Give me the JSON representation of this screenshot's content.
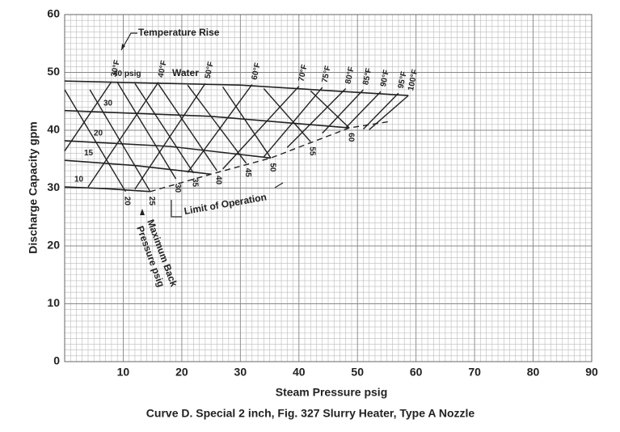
{
  "chart_data": {
    "type": "line",
    "title": "Curve D.  Special 2 inch, Fig. 327 Slurry Heater, Type A Nozzle",
    "x_label": "Steam Pressure psig",
    "y_label": "Discharge Capacity gpm",
    "xlim": [
      0,
      90
    ],
    "ylim": [
      0,
      60
    ],
    "xticks": [
      10,
      20,
      30,
      40,
      50,
      60,
      70,
      80,
      90
    ],
    "yticks": [
      0,
      10,
      20,
      30,
      40,
      50,
      60
    ],
    "grid": true,
    "color": "#222222",
    "annotations": {
      "temperature": "Temperature Rise",
      "water": "Water",
      "limit": "Limit of Operation",
      "back_pressure_1": "Maximum Back",
      "back_pressure_2": "Pressure psig"
    },
    "pressure_curves": [
      {
        "name": "10",
        "x": [
          0,
          7,
          14.6
        ],
        "values": [
          30.2,
          29.9,
          29.4
        ]
      },
      {
        "name": "15",
        "x": [
          0,
          12,
          25
        ],
        "values": [
          34.8,
          33.9,
          32.4
        ]
      },
      {
        "name": "20",
        "x": [
          0,
          18,
          35.2
        ],
        "values": [
          38.2,
          37.2,
          35.2
        ]
      },
      {
        "name": "30",
        "x": [
          0,
          25,
          48.6
        ],
        "values": [
          43.4,
          42.4,
          40.4
        ]
      },
      {
        "name": "40 psig",
        "x": [
          0,
          30,
          58.7
        ],
        "values": [
          48.5,
          47.8,
          46.0
        ]
      }
    ],
    "temperature_lines": [
      {
        "name": "30°F",
        "x": [
          8,
          0
        ],
        "values": [
          48.4,
          36.4
        ]
      },
      {
        "name": "40°F",
        "x": [
          16,
          4
        ],
        "values": [
          48.3,
          30.2
        ]
      },
      {
        "name": "50°F",
        "x": [
          24,
          12
        ],
        "values": [
          48.1,
          29.8
        ]
      },
      {
        "name": "60°F",
        "x": [
          32,
          21
        ],
        "values": [
          47.9,
          32.7
        ]
      },
      {
        "name": "70°F",
        "x": [
          40,
          27
        ],
        "values": [
          47.6,
          33.3
        ]
      },
      {
        "name": "75°F",
        "x": [
          44,
          34
        ],
        "values": [
          47.4,
          35.4
        ]
      },
      {
        "name": "80°F",
        "x": [
          48,
          38
        ],
        "values": [
          47.2,
          37.0
        ]
      },
      {
        "name": "85°F",
        "x": [
          51,
          44
        ],
        "values": [
          47.0,
          39.5
        ]
      },
      {
        "name": "90°F",
        "x": [
          54,
          48
        ],
        "values": [
          46.7,
          40.4
        ]
      },
      {
        "name": "95°F",
        "x": [
          57,
          51
        ],
        "values": [
          46.4,
          40.2
        ]
      },
      {
        "name": "100°F",
        "x": [
          58.7,
          52
        ],
        "values": [
          46.0,
          40.1
        ]
      }
    ],
    "back_pressure_lines": [
      {
        "name": "20",
        "x": [
          0,
          10.4
        ],
        "values": [
          47.0,
          29.4
        ]
      },
      {
        "name": "25",
        "x": [
          4.3,
          14.6
        ],
        "values": [
          47.0,
          29.4
        ]
      },
      {
        "name": "30",
        "x": [
          9,
          19
        ],
        "values": [
          48.3,
          31.6
        ]
      },
      {
        "name": "35",
        "x": [
          12,
          22
        ],
        "values": [
          48.1,
          32.6
        ]
      },
      {
        "name": "40",
        "x": [
          16,
          26
        ],
        "values": [
          48.0,
          33.0
        ]
      },
      {
        "name": "45",
        "x": [
          21,
          31
        ],
        "values": [
          47.8,
          34.3
        ]
      },
      {
        "name": "50",
        "x": [
          27,
          35.2
        ],
        "values": [
          47.5,
          35.2
        ]
      },
      {
        "name": "55",
        "x": [
          34,
          42
        ],
        "values": [
          47.2,
          38.0
        ]
      },
      {
        "name": "60",
        "x": [
          42,
          48.6
        ],
        "values": [
          46.8,
          40.4
        ]
      }
    ],
    "limit_line": {
      "x": [
        14.6,
        25,
        35.2,
        48.6,
        55.4
      ],
      "values": [
        29.4,
        32.4,
        35.2,
        40.4,
        41.5
      ],
      "dashed": true
    }
  }
}
